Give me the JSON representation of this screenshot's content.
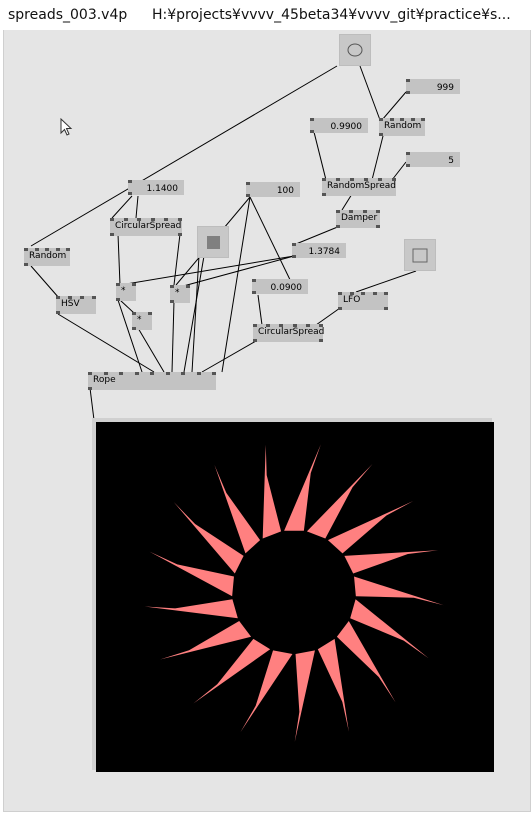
{
  "window": {
    "filename": "spreads_003.v4p",
    "path": "H:¥projects¥vvvv_45beta34¥vvvv_git¥practice¥s..."
  },
  "nodes": [
    {
      "id": "random-top",
      "label": "Random"
    },
    {
      "id": "random-spread",
      "label": "RandomSpread"
    },
    {
      "id": "damper",
      "label": "Damper"
    },
    {
      "id": "random-left",
      "label": "Random"
    },
    {
      "id": "circular-spread-top",
      "label": "CircularSpread"
    },
    {
      "id": "multiply-1",
      "label": "*"
    },
    {
      "id": "multiply-2",
      "label": "*"
    },
    {
      "id": "multiply-3",
      "label": "*"
    },
    {
      "id": "hsv",
      "label": "HSV"
    },
    {
      "id": "lfo",
      "label": "LFO"
    },
    {
      "id": "circular-spread-bottom",
      "label": "CircularSpread"
    },
    {
      "id": "rope",
      "label": "Rope"
    }
  ],
  "ioboxes": [
    {
      "id": "value-999",
      "value": "999"
    },
    {
      "id": "value-09900",
      "value": "0.9900"
    },
    {
      "id": "value-5",
      "value": "5"
    },
    {
      "id": "value-11400",
      "value": "1.1400"
    },
    {
      "id": "value-100",
      "value": "100"
    },
    {
      "id": "value-13784",
      "value": "1.3784"
    },
    {
      "id": "value-00900",
      "value": "0.0900"
    }
  ],
  "colors": {
    "canvas": "#e5e5e5",
    "node": "#c3c3c3",
    "render_bg": "#000000",
    "star": "#ff8080",
    "color_box": "#808080"
  },
  "icons": {
    "bang_toggle": "circle-icon",
    "color_box": "filled-square-icon",
    "lfo_toggle": "square-outline-icon",
    "cursor": "mouse-pointer-icon"
  }
}
